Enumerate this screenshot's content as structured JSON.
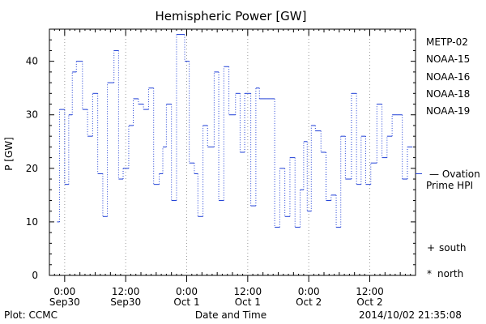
{
  "chart_data": {
    "type": "line",
    "title": "Hemispheric Power [GW]",
    "ylabel": "P [GW]",
    "xlabel": "Date and Time",
    "ylim": [
      0,
      46
    ],
    "yticks": [
      0,
      10,
      20,
      30,
      40
    ],
    "xlim_hours": [
      -3,
      69
    ],
    "xticks": [
      {
        "hour": 0,
        "label1": "0:00",
        "label2": "Sep30"
      },
      {
        "hour": 12,
        "label1": "12:00",
        "label2": "Sep30"
      },
      {
        "hour": 24,
        "label1": "0:00",
        "label2": "Oct 1"
      },
      {
        "hour": 36,
        "label1": "12:00",
        "label2": "Oct 1"
      },
      {
        "hour": 48,
        "label1": "0:00",
        "label2": "Oct 2"
      },
      {
        "hour": 60,
        "label1": "12:00",
        "label2": "Oct 2"
      }
    ],
    "grid": true,
    "series": [
      {
        "name": "NOAA-15",
        "color": "#1f3fd6",
        "style": "dotted-step",
        "x": [
          -1.5,
          -1.0,
          0.0,
          0.8,
          1.5,
          2.3,
          3.5,
          4.5,
          5.5,
          6.5,
          7.5,
          8.4,
          9.7,
          10.6,
          11.5,
          12.6,
          13.5,
          14.5,
          15.5,
          16.5,
          17.5,
          18.6,
          19.3,
          20.0,
          21.0,
          22.0,
          23.6,
          24.5,
          25.5,
          26.2,
          27.2,
          28.1,
          29.4,
          30.3,
          31.3,
          32.3,
          33.6,
          34.5,
          35.4,
          36.6,
          37.6,
          38.3,
          39.7,
          40.6,
          41.3,
          42.3,
          43.3,
          44.3,
          45.3,
          46.3,
          47.0,
          47.7,
          48.5,
          49.3,
          50.4,
          51.4,
          52.4,
          53.4,
          54.3,
          55.2,
          56.4,
          57.4,
          58.3,
          59.2,
          60.2,
          61.4,
          62.4,
          63.4,
          64.4,
          65.4,
          66.4,
          67.4
        ],
        "y": [
          10,
          31,
          17,
          30,
          38,
          40,
          31,
          26,
          34,
          19,
          11,
          36,
          42,
          18,
          20,
          28,
          33,
          32,
          31,
          35,
          17,
          19,
          24,
          32,
          14,
          45,
          40,
          21,
          19,
          11,
          28,
          24,
          38,
          14,
          39,
          30,
          34,
          23,
          34,
          13,
          35,
          33,
          33,
          33,
          9,
          20,
          11,
          22,
          9,
          16,
          25,
          12,
          28,
          27,
          23,
          14,
          15,
          9,
          26,
          18,
          34,
          17,
          26,
          17,
          21,
          32,
          22,
          26,
          30,
          30,
          18,
          24
        ]
      }
    ],
    "annotations": {
      "ovation_value": 19,
      "ovation_label_1": "— Ovation",
      "ovation_label_2": "Prime HPI",
      "ovation_color": "#1f3fd6"
    },
    "legend_position": "right",
    "legend": [
      {
        "label": "METP-02",
        "color": "#000000"
      },
      {
        "label": "NOAA-15",
        "color": "#1f3fd6"
      },
      {
        "label": "NOAA-16",
        "color": "#18c7e6"
      },
      {
        "label": "NOAA-18",
        "color": "#2dd47a"
      },
      {
        "label": "NOAA-19",
        "color": "#f28c1a"
      }
    ],
    "markers_legend": [
      {
        "symbol": "+",
        "label": "south"
      },
      {
        "symbol": "*",
        "label": "north"
      }
    ]
  },
  "footer": {
    "plot_credit": "Plot: CCMC",
    "timestamp": "2014/10/02 21:35:08"
  }
}
